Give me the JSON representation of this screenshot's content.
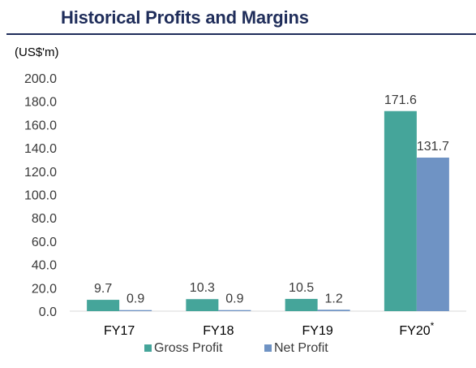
{
  "header": {
    "title": "Historical Profits and Margins",
    "unit": "(US$'m)"
  },
  "colors": {
    "title": "#1f2d5a",
    "gross_profit": "#45a59a",
    "net_profit": "#6f93c4"
  },
  "chart_data": {
    "type": "bar",
    "title": "Historical Profits and Margins",
    "ylabel": "(US$'m)",
    "categories": [
      "FY17",
      "FY18",
      "FY19",
      "FY20"
    ],
    "category_markers": [
      "",
      "",
      "",
      "*"
    ],
    "series": [
      {
        "name": "Gross Profit",
        "values": [
          9.7,
          10.3,
          10.5,
          171.6
        ],
        "labels": [
          "9.7",
          "10.3",
          "10.5",
          "171.6"
        ]
      },
      {
        "name": "Net Profit",
        "values": [
          0.9,
          0.9,
          1.2,
          131.7
        ],
        "labels": [
          "0.9",
          "0.9",
          "1.2",
          "131.7"
        ]
      }
    ],
    "ylim": [
      0,
      200
    ],
    "yticks": [
      "0.0",
      "20.0",
      "40.0",
      "60.0",
      "80.0",
      "100.0",
      "120.0",
      "140.0",
      "160.0",
      "180.0",
      "200.0"
    ],
    "grid": false,
    "legend_position": "bottom"
  }
}
